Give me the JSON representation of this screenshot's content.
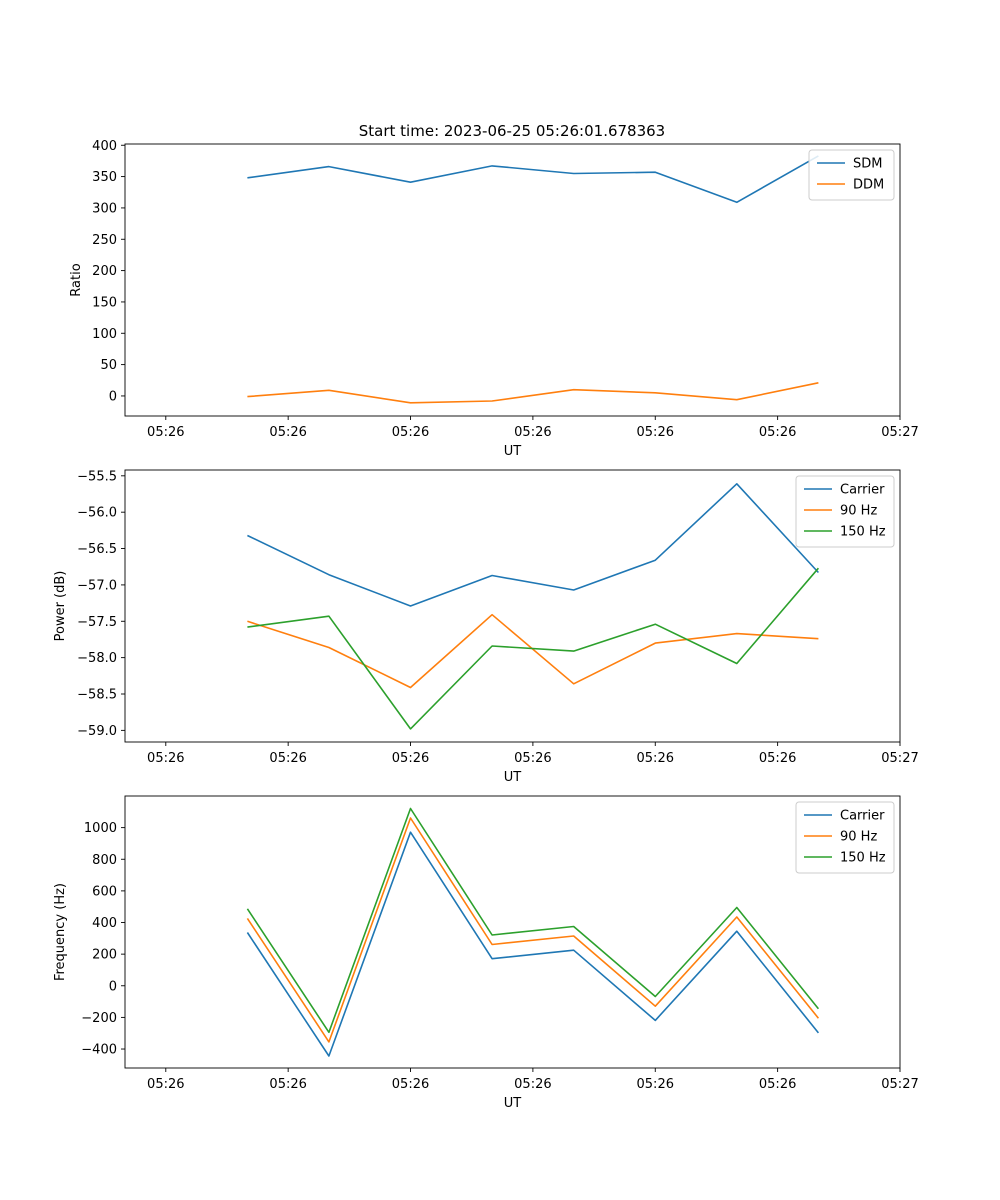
{
  "title": "Start time: 2023-06-25 05:26:01.678363",
  "colors": {
    "blue": "#1f77b4",
    "orange": "#ff7f0e",
    "green": "#2ca02c"
  },
  "chart_data": [
    {
      "type": "line",
      "xlabel": "UT",
      "ylabel": "Ratio",
      "xlim": [
        -0.5,
        9.0
      ],
      "ylim": [
        -32,
        402
      ],
      "x": [
        1,
        2,
        3,
        4,
        5,
        6,
        7,
        8
      ],
      "x_ticks": [
        0,
        1.5,
        3,
        4.5,
        6,
        7.5,
        9
      ],
      "x_tick_labels": [
        "05:26",
        "05:26",
        "05:26",
        "05:26",
        "05:26",
        "05:26",
        "05:27"
      ],
      "y_ticks": [
        0,
        50,
        100,
        150,
        200,
        250,
        300,
        350,
        400
      ],
      "y_tick_labels": [
        "0",
        "50",
        "100",
        "150",
        "200",
        "250",
        "300",
        "350",
        "400"
      ],
      "legend": "top-right",
      "series": [
        {
          "name": "SDM",
          "color": "#1f77b4",
          "values": [
            348,
            366,
            341,
            367,
            355,
            357,
            309,
            383
          ]
        },
        {
          "name": "DDM",
          "color": "#ff7f0e",
          "values": [
            -1,
            9,
            -11,
            -8,
            10,
            5,
            -6,
            21
          ]
        }
      ]
    },
    {
      "type": "line",
      "xlabel": "UT",
      "ylabel": "Power (dB)",
      "xlim": [
        -0.5,
        9.0
      ],
      "ylim": [
        -59.16,
        -55.42
      ],
      "x": [
        1,
        2,
        3,
        4,
        5,
        6,
        7,
        8
      ],
      "x_ticks": [
        0,
        1.5,
        3,
        4.5,
        6,
        7.5,
        9
      ],
      "x_tick_labels": [
        "05:26",
        "05:26",
        "05:26",
        "05:26",
        "05:26",
        "05:26",
        "05:27"
      ],
      "y_ticks": [
        -59.0,
        -58.5,
        -58.0,
        -57.5,
        -57.0,
        -56.5,
        -56.0,
        -55.5
      ],
      "y_tick_labels": [
        "−59.0",
        "−58.5",
        "−58.0",
        "−57.5",
        "−57.0",
        "−56.5",
        "−56.0",
        "−55.5"
      ],
      "legend": "top-right",
      "series": [
        {
          "name": "Carrier",
          "color": "#1f77b4",
          "values": [
            -56.32,
            -56.86,
            -57.29,
            -56.87,
            -57.07,
            -56.66,
            -55.61,
            -56.83
          ]
        },
        {
          "name": "90 Hz",
          "color": "#ff7f0e",
          "values": [
            -57.5,
            -57.86,
            -58.41,
            -57.41,
            -58.36,
            -57.8,
            -57.67,
            -57.74
          ]
        },
        {
          "name": "150 Hz",
          "color": "#2ca02c",
          "values": [
            -57.58,
            -57.43,
            -58.98,
            -57.84,
            -57.91,
            -57.54,
            -58.08,
            -56.77
          ]
        }
      ]
    },
    {
      "type": "line",
      "xlabel": "UT",
      "ylabel": "Frequency (Hz)",
      "xlim": [
        -0.5,
        9.0
      ],
      "ylim": [
        -520,
        1200
      ],
      "x": [
        1,
        2,
        3,
        4,
        5,
        6,
        7,
        8
      ],
      "x_ticks": [
        0,
        1.5,
        3,
        4.5,
        6,
        7.5,
        9
      ],
      "x_tick_labels": [
        "05:26",
        "05:26",
        "05:26",
        "05:26",
        "05:26",
        "05:26",
        "05:27"
      ],
      "y_ticks": [
        -400,
        -200,
        0,
        200,
        400,
        600,
        800,
        1000
      ],
      "y_tick_labels": [
        "−400",
        "−200",
        "0",
        "200",
        "400",
        "600",
        "800",
        "1000"
      ],
      "legend": "top-right",
      "series": [
        {
          "name": "Carrier",
          "color": "#1f77b4",
          "values": [
            337,
            -444,
            971,
            171,
            225,
            -219,
            345,
            -298
          ]
        },
        {
          "name": "90 Hz",
          "color": "#ff7f0e",
          "values": [
            426,
            -355,
            1061,
            261,
            315,
            -129,
            435,
            -205
          ]
        },
        {
          "name": "150 Hz",
          "color": "#2ca02c",
          "values": [
            487,
            -294,
            1121,
            321,
            375,
            -68,
            495,
            -145
          ]
        }
      ]
    }
  ]
}
